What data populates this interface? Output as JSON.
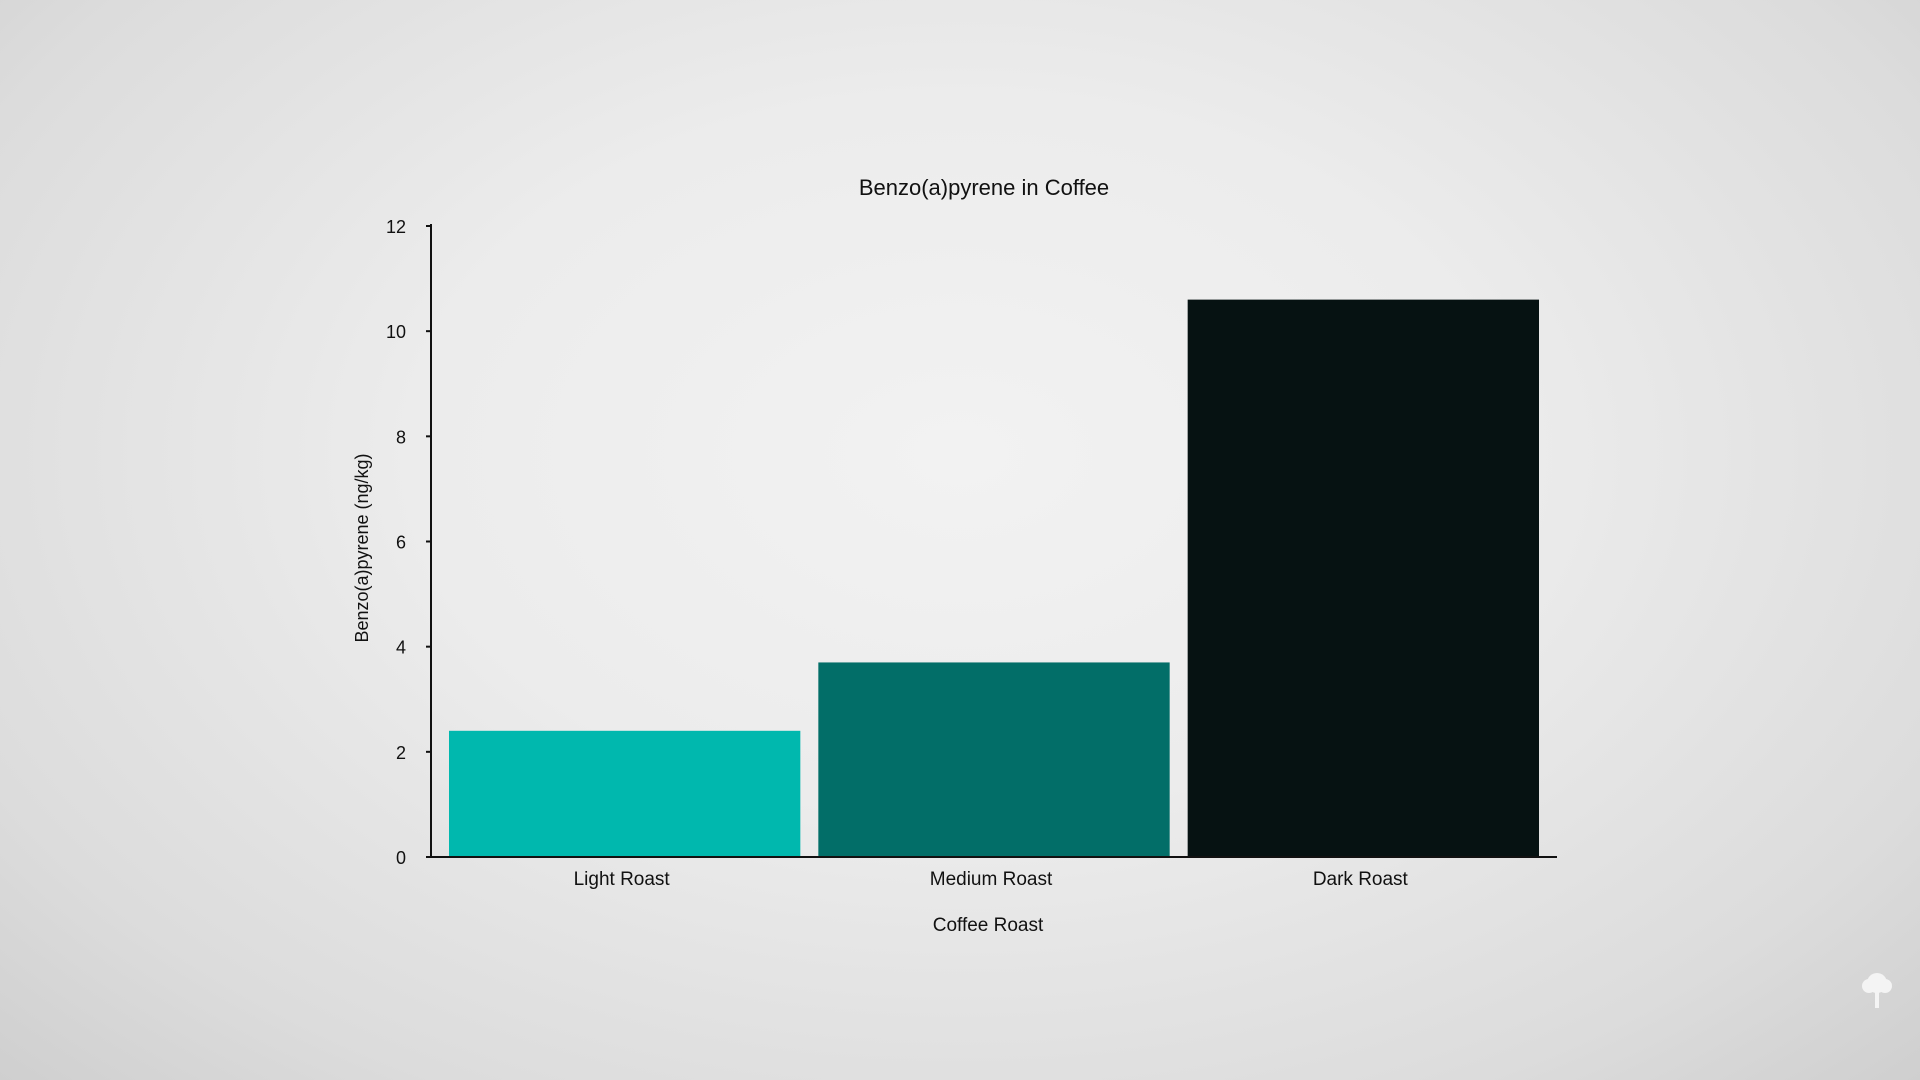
{
  "chart_data": {
    "type": "bar",
    "title": "Benzo(a)pyrene in Coffee",
    "xlabel": "Coffee Roast",
    "ylabel": "Benzo(a)pyrene (ng/kg)",
    "categories": [
      "Light Roast",
      "Medium Roast",
      "Dark Roast"
    ],
    "values": [
      2.4,
      3.7,
      10.6
    ],
    "colors": [
      "#00b8ae",
      "#026e68",
      "#061212"
    ],
    "ylim": [
      0,
      12
    ],
    "yticks": [
      0,
      2,
      4,
      6,
      8,
      10,
      12
    ],
    "grid": false,
    "legend": "none"
  },
  "logo": {
    "icon": "tree-icon",
    "color": "#f4f4f4"
  }
}
